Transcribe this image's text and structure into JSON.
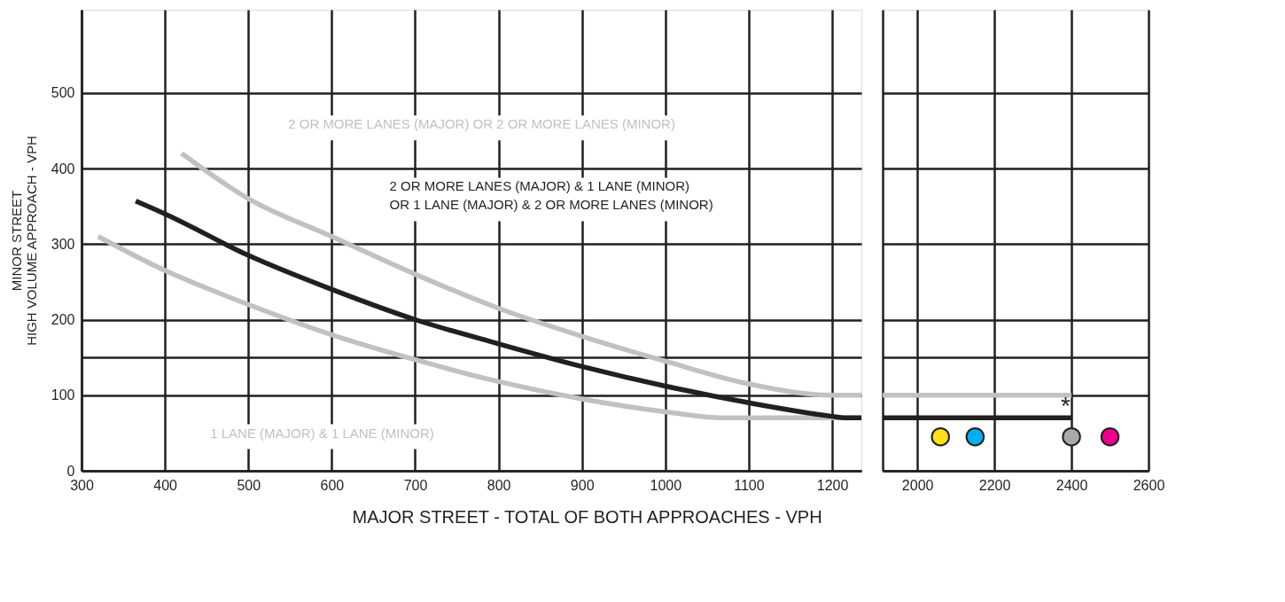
{
  "chart_data": [
    {
      "type": "line",
      "xlabel": "MAJOR STREET - TOTAL OF BOTH APPROACHES - VPH",
      "ylabel": "MINOR STREET\nHIGH VOLUME APPROACH - VPH",
      "xlim": [
        300,
        1235
      ],
      "xticks": [
        300,
        400,
        500,
        600,
        700,
        800,
        900,
        1000,
        1100,
        1200
      ],
      "ylim": [
        0,
        610
      ],
      "yticks": [
        0,
        100,
        {
          "value": 150,
          "label": null
        },
        200,
        300,
        400,
        500
      ],
      "grid": true,
      "series": [
        {
          "color": "#c0c1c3",
          "x": [
            420,
            500,
            600,
            700,
            800,
            900,
            1000,
            1100,
            1200,
            1235
          ],
          "values": [
            420,
            360,
            310,
            260,
            215,
            178,
            145,
            115,
            100,
            100
          ]
        },
        {
          "color": "#231f20",
          "x": [
            365,
            400,
            500,
            600,
            700,
            800,
            900,
            1000,
            1100,
            1200,
            1215,
            1235
          ],
          "values": [
            357,
            340,
            285,
            240,
            200,
            168,
            138,
            112,
            90,
            72,
            70,
            70
          ]
        },
        {
          "color": "#c0c1c3",
          "x": [
            320,
            400,
            500,
            600,
            700,
            800,
            900,
            1000,
            1070,
            1235
          ],
          "values": [
            310,
            265,
            220,
            180,
            147,
            118,
            95,
            78,
            70,
            70
          ]
        }
      ],
      "annotations": [
        "2 OR MORE LANES (MAJOR) OR 2 OR MORE LANES (MINOR)",
        "2 OR MORE LANES (MAJOR) & 1 LANE (MINOR)\nOR 1 LANE (MAJOR) & 2 OR MORE LANES (MINOR)",
        "1 LANE (MAJOR) & 1 LANE (MINOR)"
      ]
    },
    {
      "type": "line",
      "xlim": [
        1910,
        2600
      ],
      "xticks": [
        2000,
        2200,
        2400,
        2600
      ],
      "ylim": [
        0,
        610
      ],
      "yticks": [
        0,
        100,
        {
          "value": 150,
          "label": null
        },
        200,
        300,
        400,
        500
      ],
      "grid": true,
      "tick_labels": "x",
      "series": [
        {
          "color": "#231f20",
          "x": [
            1910,
            2400
          ],
          "values": [
            70,
            70
          ]
        },
        {
          "color": "#c0c1c3",
          "x": [
            1910,
            2400
          ],
          "values": [
            100,
            100
          ]
        },
        {
          "type": "scatter",
          "x": [
            2060,
            2150,
            2400,
            2500
          ],
          "values": [
            45,
            45,
            45,
            45
          ],
          "colors": [
            "#ffe01b",
            "#00aeef",
            "#a7a9ac",
            "#ec008c"
          ]
        }
      ],
      "annotations": [
        "*"
      ]
    }
  ]
}
